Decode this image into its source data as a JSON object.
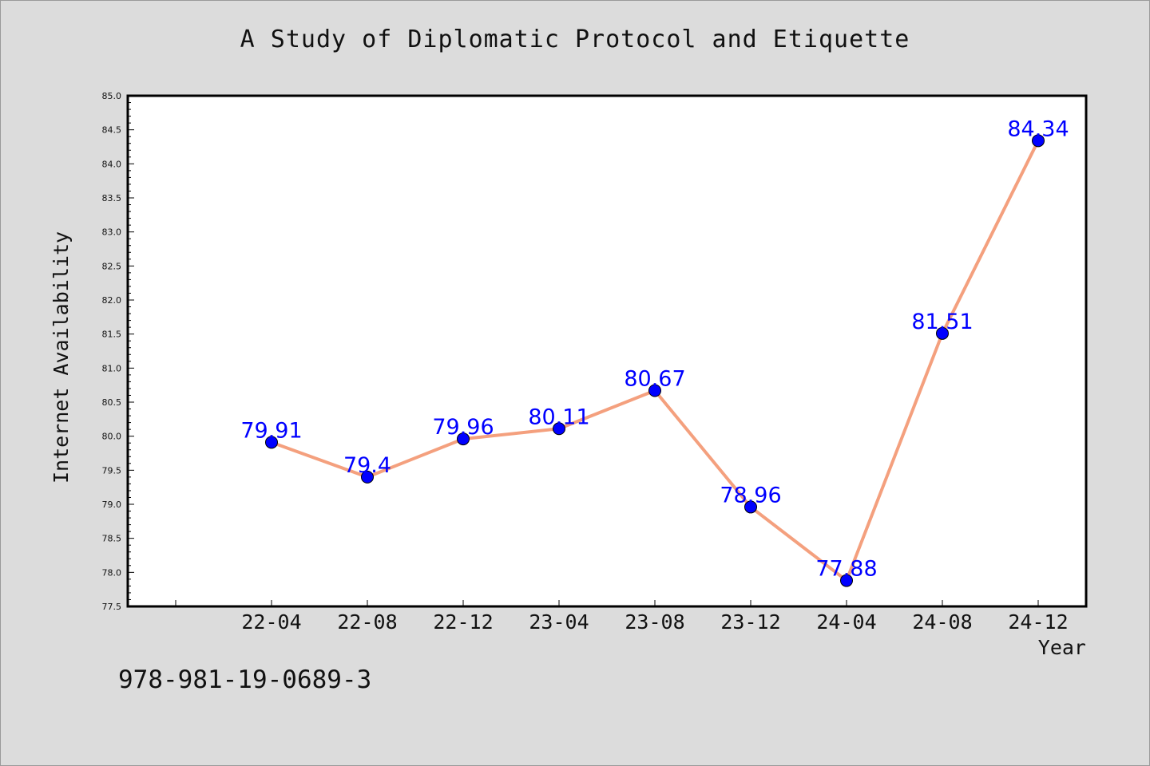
{
  "chart_data": {
    "type": "line",
    "title": "A Study of Diplomatic Protocol and Etiquette",
    "xlabel": "Year",
    "ylabel": "Internet Availability",
    "categories": [
      "22-04",
      "22-08",
      "22-12",
      "23-04",
      "23-08",
      "23-12",
      "24-04",
      "24-08",
      "24-12"
    ],
    "series": [
      {
        "values": [
          79.91,
          79.4,
          79.96,
          80.11,
          80.67,
          78.96,
          77.88,
          81.51,
          84.34
        ]
      }
    ],
    "data_labels": [
      "79.91",
      "79.4",
      "79.96",
      "80.11",
      "80.67",
      "78.96",
      "77.88",
      "81.51",
      "84.34"
    ],
    "yticks": [
      "77.5",
      "78.0",
      "78.5",
      "79.0",
      "79.5",
      "80.0",
      "80.5",
      "81.0",
      "81.5",
      "82.0",
      "82.5",
      "83.0",
      "83.5",
      "84.0",
      "84.5",
      "85.0"
    ],
    "ylim": [
      77.5,
      85.0
    ],
    "grid": false,
    "line_color": "#f4a07e",
    "marker_color": "#0000ff",
    "label_color": "#0000ff",
    "plot_background": "#ffffff",
    "page_background": "#dcdcdc"
  },
  "footer": {
    "isbn": "978-981-19-0689-3"
  }
}
